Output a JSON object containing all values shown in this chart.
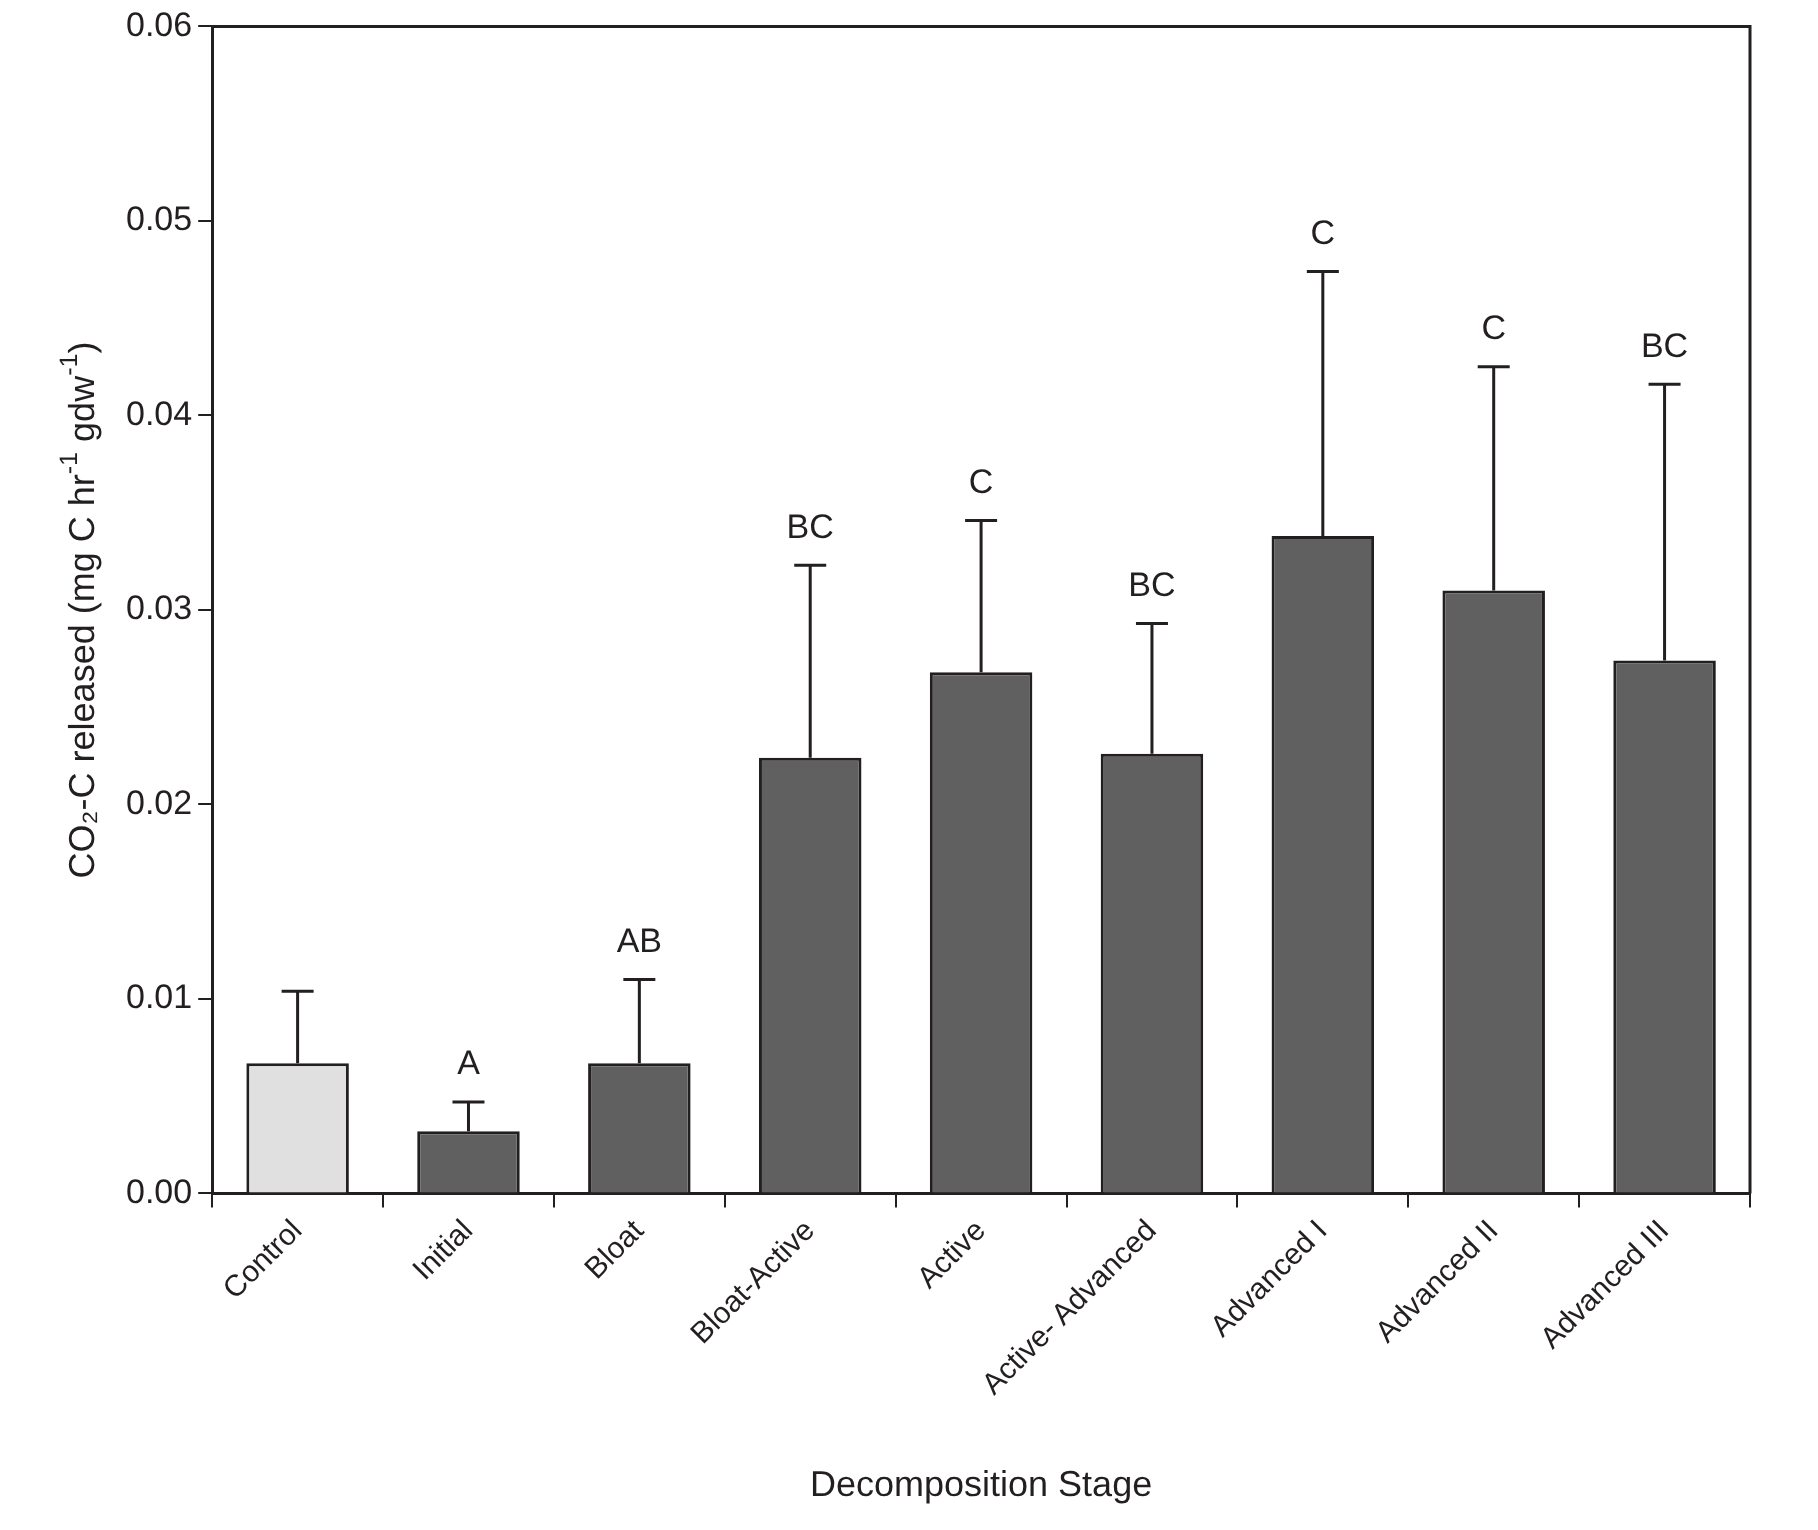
{
  "chart_data": {
    "type": "bar",
    "xlabel": "Decomposition Stage",
    "ylabel": "CO₂-C released (mg C hr$^{-1}$ gdw$^{-1}$)",
    "categories": [
      "Control",
      "Initial",
      "Bloat",
      "Bloat-Active",
      "Active",
      "Active- Advanced",
      "Advanced I",
      "Advanced II",
      "Advanced III"
    ],
    "values": [
      0.0067,
      0.0032,
      0.0067,
      0.0224,
      0.0268,
      0.0226,
      0.0338,
      0.031,
      0.0274
    ],
    "colors": [
      "#e0e0e0",
      "#606060",
      "#606060",
      "#606060",
      "#606060",
      "#606060",
      "#606060",
      "#606060",
      "#606060"
    ],
    "errors": [
      [
        0.0067,
        0.0104
      ],
      [
        0.0032,
        0.0047
      ],
      [
        0.0067,
        0.011
      ],
      [
        0.0224,
        0.0323
      ],
      [
        0.0268,
        0.0346
      ],
      [
        0.0226,
        0.0293
      ],
      [
        0.0338,
        0.0474
      ],
      [
        0.031,
        0.0425
      ],
      [
        0.0274,
        0.0416
      ]
    ],
    "annotations": [
      {
        "text": "A",
        "x": "Initial",
        "y": 0.0047
      },
      {
        "text": "AB",
        "x": "Bloat",
        "y": 0.011
      },
      {
        "text": "BC",
        "x": "Bloat-Active",
        "y": 0.0323
      },
      {
        "text": "C",
        "x": "Active",
        "y": 0.0346
      },
      {
        "text": "BC",
        "x": "Active- Advanced",
        "y": 0.0293
      },
      {
        "text": "C",
        "x": "Advanced I",
        "y": 0.0474
      },
      {
        "text": "C",
        "x": "Advanced II",
        "y": 0.0425
      },
      {
        "text": "BC",
        "x": "Advanced III",
        "y": 0.0416
      }
    ],
    "ylim": [
      0,
      0.06
    ],
    "yticks": [
      {
        "value": 0,
        "label": "0.00"
      },
      {
        "value": 0.01,
        "label": "0.01"
      },
      {
        "value": 0.02,
        "label": "0.02"
      },
      {
        "value": 0.03,
        "label": "0.03"
      },
      {
        "value": 0.04,
        "label": "0.04"
      },
      {
        "value": 0.05,
        "label": "0.05"
      },
      {
        "value": 0.06,
        "label": "0.06"
      }
    ],
    "grid": false,
    "legend": false
  }
}
